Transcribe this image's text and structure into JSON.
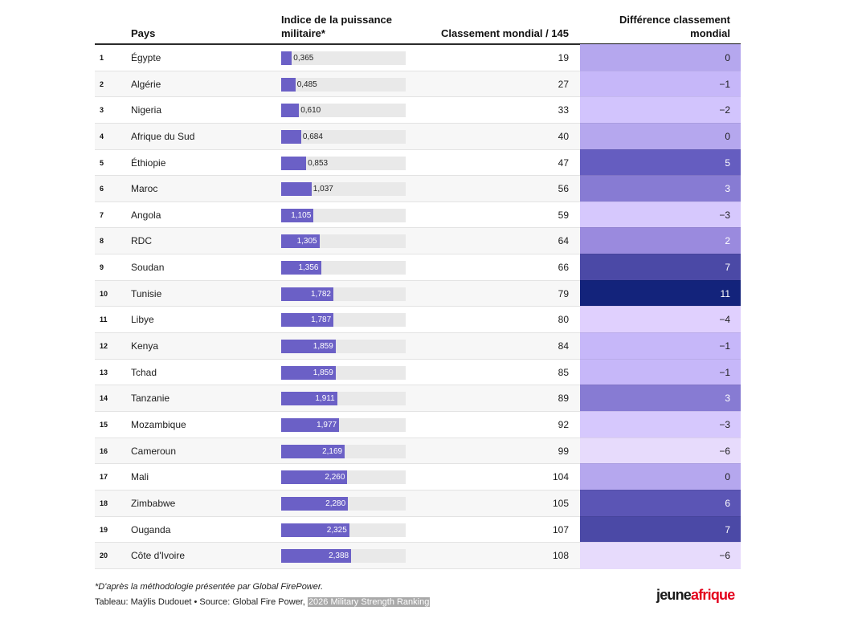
{
  "header": {
    "col_country": "Pays",
    "col_index": "Indice de la puissance militaire*",
    "col_world_rank": "Classement mondial / 145",
    "col_diff": "Différence classement mondial"
  },
  "rows": [
    {
      "rank": "1",
      "country": "Égypte",
      "index": 0.365,
      "index_label": "0,365",
      "world_rank": "19",
      "diff": 0,
      "diff_label": "0",
      "diff_color": "#b5a7ee"
    },
    {
      "rank": "2",
      "country": "Algérie",
      "index": 0.485,
      "index_label": "0,485",
      "world_rank": "27",
      "diff": -1,
      "diff_label": "−1",
      "diff_color": "#c6b7f9"
    },
    {
      "rank": "3",
      "country": "Nigeria",
      "index": 0.61,
      "index_label": "0,610",
      "world_rank": "33",
      "diff": -2,
      "diff_label": "−2",
      "diff_color": "#d2c4fd"
    },
    {
      "rank": "4",
      "country": "Afrique du Sud",
      "index": 0.684,
      "index_label": "0,684",
      "world_rank": "40",
      "diff": 0,
      "diff_label": "0",
      "diff_color": "#b5a7ee"
    },
    {
      "rank": "5",
      "country": "Éthiopie",
      "index": 0.853,
      "index_label": "0,853",
      "world_rank": "47",
      "diff": 5,
      "diff_label": "5",
      "diff_color": "#655dc0"
    },
    {
      "rank": "6",
      "country": "Maroc",
      "index": 1.037,
      "index_label": "1,037",
      "world_rank": "56",
      "diff": 3,
      "diff_label": "3",
      "diff_color": "#877bd3"
    },
    {
      "rank": "7",
      "country": "Angola",
      "index": 1.105,
      "index_label": "1,105",
      "world_rank": "59",
      "diff": -3,
      "diff_label": "−3",
      "diff_color": "#d6c8fd"
    },
    {
      "rank": "8",
      "country": "RDC",
      "index": 1.305,
      "index_label": "1,305",
      "world_rank": "64",
      "diff": 2,
      "diff_label": "2",
      "diff_color": "#9a8ade"
    },
    {
      "rank": "9",
      "country": "Soudan",
      "index": 1.356,
      "index_label": "1,356",
      "world_rank": "66",
      "diff": 7,
      "diff_label": "7",
      "diff_color": "#4b49a6"
    },
    {
      "rank": "10",
      "country": "Tunisie",
      "index": 1.782,
      "index_label": "1,782",
      "world_rank": "79",
      "diff": 11,
      "diff_label": "11",
      "diff_color": "#13237b"
    },
    {
      "rank": "11",
      "country": "Libye",
      "index": 1.787,
      "index_label": "1,787",
      "world_rank": "80",
      "diff": -4,
      "diff_label": "−4",
      "diff_color": "#e0d0fe"
    },
    {
      "rank": "12",
      "country": "Kenya",
      "index": 1.859,
      "index_label": "1,859",
      "world_rank": "84",
      "diff": -1,
      "diff_label": "−1",
      "diff_color": "#c6b7f9"
    },
    {
      "rank": "13",
      "country": "Tchad",
      "index": 1.859,
      "index_label": "1,859",
      "world_rank": "85",
      "diff": -1,
      "diff_label": "−1",
      "diff_color": "#c6b7f9"
    },
    {
      "rank": "14",
      "country": "Tanzanie",
      "index": 1.911,
      "index_label": "1,911",
      "world_rank": "89",
      "diff": 3,
      "diff_label": "3",
      "diff_color": "#877bd3"
    },
    {
      "rank": "15",
      "country": "Mozambique",
      "index": 1.977,
      "index_label": "1,977",
      "world_rank": "92",
      "diff": -3,
      "diff_label": "−3",
      "diff_color": "#d6c8fd"
    },
    {
      "rank": "16",
      "country": "Cameroun",
      "index": 2.169,
      "index_label": "2,169",
      "world_rank": "99",
      "diff": -6,
      "diff_label": "−6",
      "diff_color": "#e7dbfc"
    },
    {
      "rank": "17",
      "country": "Mali",
      "index": 2.26,
      "index_label": "2,260",
      "world_rank": "104",
      "diff": 0,
      "diff_label": "0",
      "diff_color": "#b5a7ee"
    },
    {
      "rank": "18",
      "country": "Zimbabwe",
      "index": 2.28,
      "index_label": "2,280",
      "world_rank": "105",
      "diff": 6,
      "diff_label": "6",
      "diff_color": "#5b55b5"
    },
    {
      "rank": "19",
      "country": "Ouganda",
      "index": 2.325,
      "index_label": "2,325",
      "world_rank": "107",
      "diff": 7,
      "diff_label": "7",
      "diff_color": "#4b49a6"
    },
    {
      "rank": "20",
      "country": "Côte d'Ivoire",
      "index": 2.388,
      "index_label": "2,388",
      "world_rank": "108",
      "diff": -6,
      "diff_label": "−6",
      "diff_color": "#e7dbfc"
    }
  ],
  "colors": {
    "bar": "#6b60c6",
    "bar_track": "#e9e9e9",
    "row_alt": "#f7f7f7",
    "logo_red": "#e3001b"
  },
  "footer": {
    "note": "*D'après la méthodologie présentée par Global FirePower.",
    "source_prefix": "Tableau: Maÿlis Dudouet • Source: Global Fire Power, ",
    "source_link": "2026 Military Strength Ranking"
  },
  "logo": {
    "part1": "jeune",
    "part2": "afrique"
  },
  "chart_data": {
    "type": "table",
    "title": "",
    "columns": [
      "",
      "Pays",
      "Indice de la puissance militaire*",
      "Classement mondial / 145",
      "Différence classement mondial"
    ],
    "index_axis_range": [
      0,
      4.25
    ],
    "categories": [
      "Égypte",
      "Algérie",
      "Nigeria",
      "Afrique du Sud",
      "Éthiopie",
      "Maroc",
      "Angola",
      "RDC",
      "Soudan",
      "Tunisie",
      "Libye",
      "Kenya",
      "Tchad",
      "Tanzanie",
      "Mozambique",
      "Cameroun",
      "Mali",
      "Zimbabwe",
      "Ouganda",
      "Côte d'Ivoire"
    ],
    "series": [
      {
        "name": "Indice de la puissance militaire",
        "values": [
          0.365,
          0.485,
          0.61,
          0.684,
          0.853,
          1.037,
          1.105,
          1.305,
          1.356,
          1.782,
          1.787,
          1.859,
          1.859,
          1.911,
          1.977,
          2.169,
          2.26,
          2.28,
          2.325,
          2.388
        ]
      },
      {
        "name": "Classement mondial / 145",
        "values": [
          19,
          27,
          33,
          40,
          47,
          56,
          59,
          64,
          66,
          79,
          80,
          84,
          85,
          89,
          92,
          99,
          104,
          105,
          107,
          108
        ]
      },
      {
        "name": "Différence classement mondial",
        "values": [
          0,
          -1,
          -2,
          0,
          5,
          3,
          -3,
          2,
          7,
          11,
          -4,
          -1,
          -1,
          3,
          -3,
          -6,
          0,
          6,
          7,
          -6
        ]
      }
    ]
  }
}
